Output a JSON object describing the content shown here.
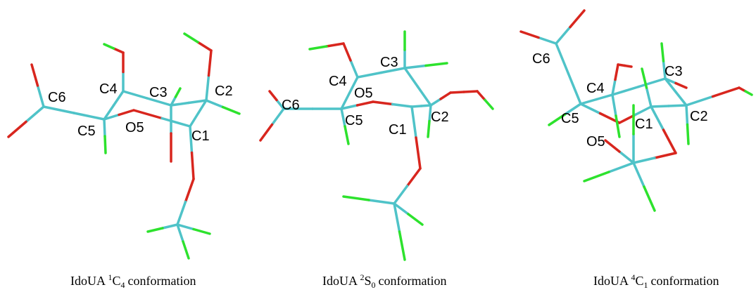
{
  "panels": [
    {
      "atoms": [
        "C6",
        "C4",
        "C3",
        "C2",
        "C5",
        "O5",
        "C1"
      ],
      "caption": {
        "name": "IdoUA",
        "sup": "1",
        "letter": "C",
        "sub": "4",
        "rest": "conformation"
      }
    },
    {
      "atoms": [
        "C4",
        "O5",
        "C3",
        "C6",
        "C5",
        "C2",
        "C1"
      ],
      "caption": {
        "name": "IdoUA",
        "sup": "2",
        "letter": "S",
        "sub": "0",
        "rest": "conformation"
      }
    },
    {
      "atoms": [
        "C6",
        "C3",
        "C4",
        "C5",
        "C1",
        "C2",
        "O5"
      ],
      "caption": {
        "name": "IdoUA",
        "sup": "4",
        "letter": "C",
        "sub": "1",
        "rest": "conformation"
      }
    }
  ]
}
